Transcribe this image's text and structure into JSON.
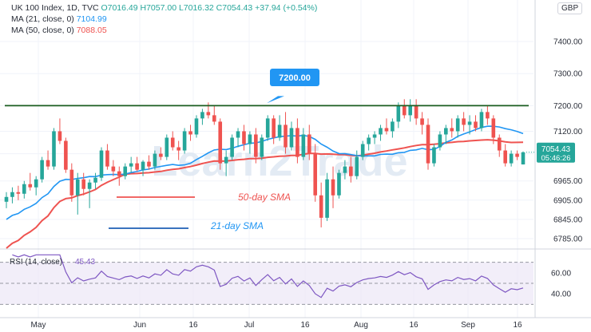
{
  "header": {
    "symbol": "UK 100 Index, 1D, TVC",
    "ohlc": "O7016.49 H7057.00 L7016.32 C7054.43 +37.94 (+0.54%)",
    "ma21_label": "MA (21, close, 0)",
    "ma21_value": "7104.99",
    "ma50_label": "MA (50, close, 0)",
    "ma50_value": "7088.05",
    "currency": "GBP"
  },
  "watermark": "Learn2Trade",
  "colors": {
    "up": "#26a69a",
    "down": "#ef5350",
    "ma21": "#2196f3",
    "ma50": "#ef5350",
    "resistance": "#1b5e20",
    "rsi": "#7e57c2",
    "rsi_band": "#ede7f6"
  },
  "chart_data": [
    {
      "type": "candlestick",
      "title": "UK 100 Index, 1D, TVC",
      "y_ticks": [
        6785.0,
        6845.0,
        6905.0,
        6965.0,
        7050.0,
        7120.0,
        7200.0,
        7300.0,
        7400.0
      ],
      "y_tick_labels": [
        "6785.00",
        "6845.00",
        "6905.00",
        "6965.00",
        "",
        "7120.00",
        "7200.00",
        "7300.00",
        "7400.00"
      ],
      "x_tick_labels": [
        "May",
        "Jun",
        "16",
        "Jul",
        "16",
        "Aug",
        "16",
        "Sep",
        "16"
      ],
      "price_label": "7054.43",
      "countdown_label": "05:46:26",
      "resistance_level": 7200,
      "resistance_label": "7200.00",
      "annotations": [
        "50-day SMA",
        "21-day SMA"
      ],
      "candles": [
        [
          6900,
          6930,
          6880,
          6915
        ],
        [
          6915,
          6945,
          6895,
          6930
        ],
        [
          6930,
          6950,
          6905,
          6925
        ],
        [
          6925,
          6965,
          6910,
          6955
        ],
        [
          6955,
          6990,
          6935,
          6945
        ],
        [
          6945,
          6980,
          6920,
          6970
        ],
        [
          6970,
          7040,
          6960,
          7030
        ],
        [
          7030,
          7060,
          7000,
          7010
        ],
        [
          7010,
          7130,
          7000,
          7120
        ],
        [
          7120,
          7160,
          7080,
          7090
        ],
        [
          7090,
          7100,
          6990,
          7000
        ],
        [
          7000,
          7020,
          6900,
          6920
        ],
        [
          6920,
          6990,
          6860,
          6970
        ],
        [
          6970,
          6990,
          6920,
          6940
        ],
        [
          6940,
          6970,
          6880,
          6960
        ],
        [
          6960,
          6990,
          6940,
          6975
        ],
        [
          6975,
          7070,
          6965,
          7060
        ],
        [
          7060,
          7080,
          7000,
          7010
        ],
        [
          7010,
          7030,
          6980,
          6995
        ],
        [
          6995,
          7010,
          6950,
          6980
        ],
        [
          6980,
          7020,
          6970,
          7010
        ],
        [
          7010,
          7040,
          6990,
          7020
        ],
        [
          7020,
          7040,
          6995,
          7000
        ],
        [
          7000,
          7030,
          6980,
          7025
        ],
        [
          7025,
          7045,
          7000,
          7010
        ],
        [
          7010,
          7060,
          7000,
          7050
        ],
        [
          7050,
          7070,
          7030,
          7040
        ],
        [
          7040,
          7110,
          7030,
          7100
        ],
        [
          7100,
          7120,
          7060,
          7070
        ],
        [
          7070,
          7090,
          7030,
          7060
        ],
        [
          7060,
          7130,
          7050,
          7120
        ],
        [
          7120,
          7140,
          7090,
          7110
        ],
        [
          7110,
          7170,
          7100,
          7160
        ],
        [
          7160,
          7190,
          7140,
          7180
        ],
        [
          7180,
          7210,
          7160,
          7170
        ],
        [
          7170,
          7200,
          7140,
          7150
        ],
        [
          7150,
          7160,
          7000,
          7020
        ],
        [
          7020,
          7060,
          6980,
          7040
        ],
        [
          7040,
          7110,
          7030,
          7100
        ],
        [
          7100,
          7130,
          7070,
          7120
        ],
        [
          7120,
          7140,
          7060,
          7080
        ],
        [
          7080,
          7120,
          7050,
          7110
        ],
        [
          7110,
          7130,
          7020,
          7040
        ],
        [
          7040,
          7110,
          7030,
          7100
        ],
        [
          7100,
          7170,
          7090,
          7160
        ],
        [
          7160,
          7170,
          7080,
          7100
        ],
        [
          7100,
          7170,
          7090,
          7140
        ],
        [
          7140,
          7180,
          7050,
          7070
        ],
        [
          7070,
          7150,
          7060,
          7130
        ],
        [
          7130,
          7160,
          7020,
          7040
        ],
        [
          7040,
          7130,
          7030,
          7110
        ],
        [
          7110,
          7140,
          7030,
          7050
        ],
        [
          7050,
          7080,
          6900,
          6920
        ],
        [
          6920,
          6960,
          6820,
          6850
        ],
        [
          6850,
          6990,
          6840,
          6970
        ],
        [
          6970,
          7010,
          6880,
          6920
        ],
        [
          6920,
          7000,
          6910,
          6990
        ],
        [
          6990,
          7030,
          6970,
          7010
        ],
        [
          7010,
          7040,
          6960,
          6980
        ],
        [
          6980,
          7060,
          6970,
          7040
        ],
        [
          7040,
          7090,
          7030,
          7080
        ],
        [
          7080,
          7110,
          7060,
          7100
        ],
        [
          7100,
          7120,
          7080,
          7110
        ],
        [
          7110,
          7140,
          7090,
          7130
        ],
        [
          7130,
          7160,
          7110,
          7120
        ],
        [
          7120,
          7160,
          7100,
          7150
        ],
        [
          7150,
          7210,
          7130,
          7200
        ],
        [
          7200,
          7220,
          7160,
          7170
        ],
        [
          7170,
          7220,
          7150,
          7200
        ],
        [
          7200,
          7220,
          7140,
          7160
        ],
        [
          7160,
          7180,
          7110,
          7140
        ],
        [
          7140,
          7160,
          7000,
          7020
        ],
        [
          7020,
          7080,
          7010,
          7070
        ],
        [
          7070,
          7120,
          7060,
          7110
        ],
        [
          7110,
          7140,
          7080,
          7130
        ],
        [
          7130,
          7160,
          7100,
          7120
        ],
        [
          7120,
          7170,
          7100,
          7160
        ],
        [
          7160,
          7180,
          7120,
          7140
        ],
        [
          7140,
          7170,
          7110,
          7150
        ],
        [
          7150,
          7170,
          7120,
          7130
        ],
        [
          7130,
          7190,
          7120,
          7180
        ],
        [
          7180,
          7200,
          7140,
          7160
        ],
        [
          7160,
          7170,
          7080,
          7100
        ],
        [
          7100,
          7110,
          7040,
          7060
        ],
        [
          7060,
          7080,
          7010,
          7020
        ],
        [
          7020,
          7060,
          7010,
          7050
        ],
        [
          7050,
          7060,
          7030,
          7040
        ],
        [
          7016.49,
          7057.0,
          7016.32,
          7054.43
        ]
      ]
    },
    {
      "type": "line",
      "title": "RSI (14, close)",
      "value_label": "45.43",
      "y_ticks": [
        40.0,
        60.0
      ],
      "y_tick_labels": [
        "40.00",
        "60.00"
      ],
      "band": [
        30,
        70
      ]
    }
  ]
}
